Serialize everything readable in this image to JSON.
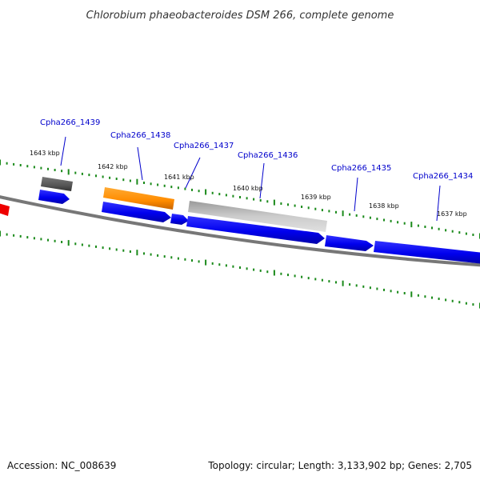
{
  "title": "Chlorobium phaeobacteroides DSM 266, complete genome",
  "footer": {
    "accession": "Accession: NC_008639",
    "summary": "Topology: circular; Length: 3,133,902 bp; Genes: 2,705"
  },
  "colors": {
    "backbone": "#777777",
    "cds_forward": "#0000ee",
    "cds_highlight": "#ff8c00",
    "cds_dark": "#555555",
    "cds_light": "#aaaaaa",
    "tick": "#1a8a1a",
    "label": "#0000cc",
    "red_feature": "#ee0000"
  },
  "scale_labels": [
    "1643 kbp",
    "1642 kbp",
    "1641 kbp",
    "1640 kbp",
    "1639 kbp",
    "1638 kbp",
    "1637 kbp"
  ],
  "gene_labels": [
    "Cpha266_1439",
    "Cpha266_1438",
    "Cpha266_1437",
    "Cpha266_1436",
    "Cpha266_1435",
    "Cpha266_1434"
  ]
}
